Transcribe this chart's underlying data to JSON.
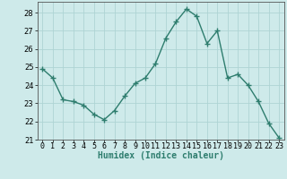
{
  "x": [
    0,
    1,
    2,
    3,
    4,
    5,
    6,
    7,
    8,
    9,
    10,
    11,
    12,
    13,
    14,
    15,
    16,
    17,
    18,
    19,
    20,
    21,
    22,
    23
  ],
  "y": [
    24.9,
    24.4,
    23.2,
    23.1,
    22.9,
    22.4,
    22.1,
    22.6,
    23.4,
    24.1,
    24.4,
    25.2,
    26.6,
    27.5,
    28.2,
    27.8,
    26.3,
    27.0,
    24.4,
    24.6,
    24.0,
    23.1,
    21.9,
    21.1
  ],
  "line_color": "#2e7d6e",
  "marker": "+",
  "marker_size": 4,
  "marker_lw": 1.0,
  "bg_color": "#ceeaea",
  "grid_color": "#aed4d4",
  "xlabel": "Humidex (Indice chaleur)",
  "xlim": [
    -0.5,
    23.5
  ],
  "ylim": [
    21,
    28.6
  ],
  "yticks": [
    21,
    22,
    23,
    24,
    25,
    26,
    27,
    28
  ],
  "xticks": [
    0,
    1,
    2,
    3,
    4,
    5,
    6,
    7,
    8,
    9,
    10,
    11,
    12,
    13,
    14,
    15,
    16,
    17,
    18,
    19,
    20,
    21,
    22,
    23
  ],
  "xlabel_fontsize": 7,
  "tick_fontsize": 6,
  "linewidth": 1.0
}
